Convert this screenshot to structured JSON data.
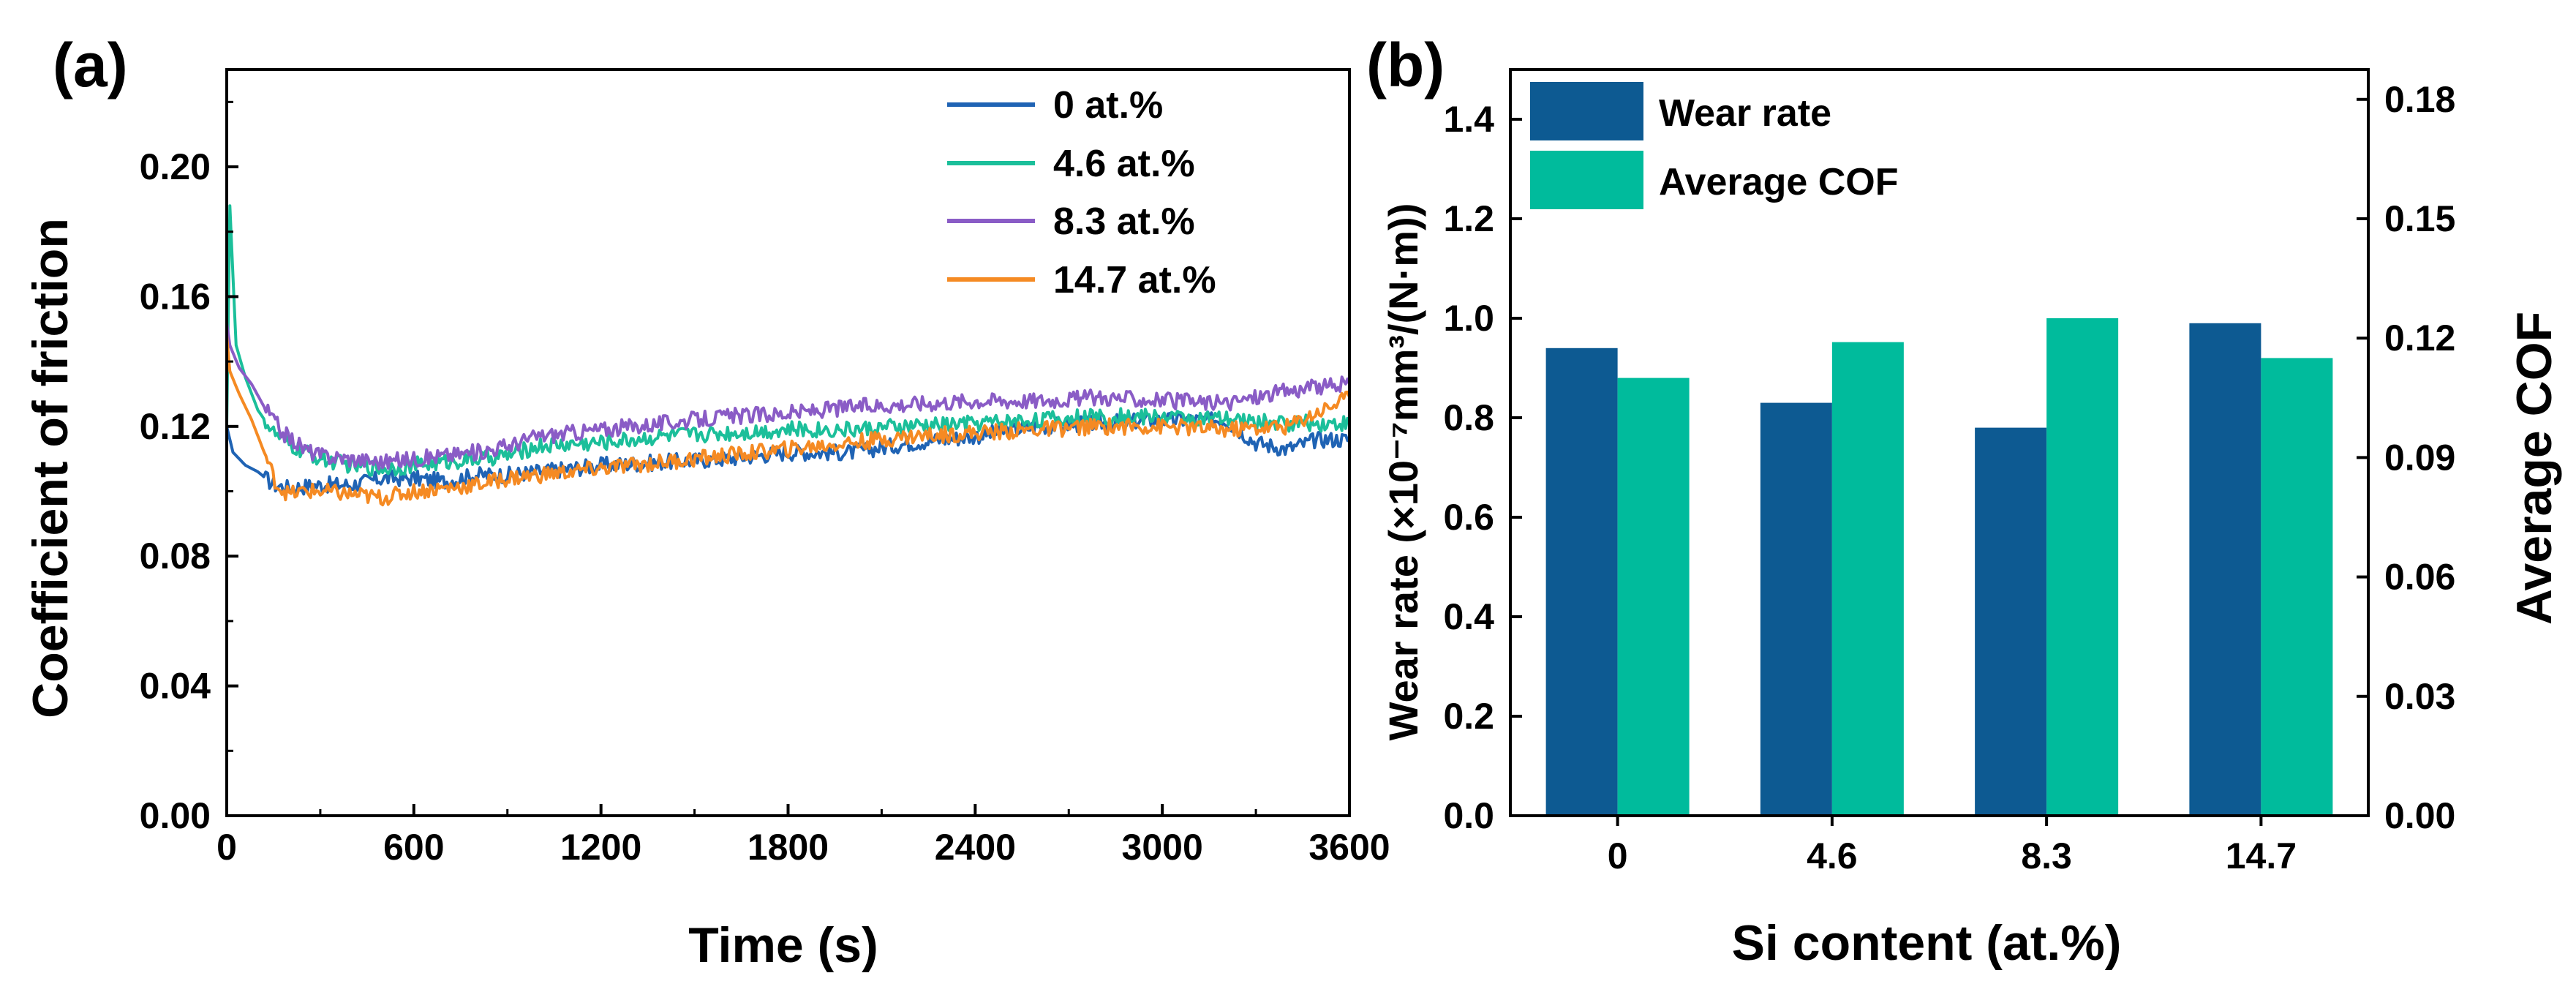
{
  "chart_data": [
    {
      "panel_label": "(a)",
      "type": "line",
      "xlabel": "Time (s)",
      "ylabel": "Coefficient of friction",
      "xlim": [
        0,
        3600
      ],
      "ylim": [
        0,
        0.23
      ],
      "xticks": [
        "0",
        "600",
        "1200",
        "1800",
        "2400",
        "3000",
        "3600"
      ],
      "yticks": [
        "0.00",
        "0.04",
        "0.08",
        "0.12",
        "0.16",
        "0.20"
      ],
      "legend_position": "top-right",
      "series": [
        {
          "name": "0 at.%",
          "color": "#1f63b4",
          "x": [
            0,
            20,
            60,
            100,
            150,
            200,
            300,
            400,
            500,
            600,
            700,
            800,
            900,
            1000,
            1200,
            1400,
            1600,
            1800,
            2000,
            2200,
            2400,
            2600,
            2800,
            3000,
            3200,
            3300,
            3400,
            3500,
            3600
          ],
          "y": [
            0.12,
            0.112,
            0.108,
            0.106,
            0.102,
            0.101,
            0.102,
            0.102,
            0.104,
            0.104,
            0.103,
            0.105,
            0.105,
            0.106,
            0.108,
            0.109,
            0.11,
            0.112,
            0.112,
            0.115,
            0.117,
            0.12,
            0.121,
            0.122,
            0.122,
            0.115,
            0.113,
            0.116,
            0.116
          ]
        },
        {
          "name": "4.6 at.%",
          "color": "#1bbf9a",
          "x": [
            0,
            10,
            30,
            60,
            100,
            150,
            200,
            300,
            400,
            500,
            600,
            700,
            800,
            900,
            1000,
            1200,
            1400,
            1600,
            1800,
            2000,
            2200,
            2400,
            2600,
            2800,
            3000,
            3200,
            3400,
            3600
          ],
          "y": [
            0.12,
            0.188,
            0.145,
            0.135,
            0.125,
            0.118,
            0.114,
            0.11,
            0.108,
            0.107,
            0.108,
            0.109,
            0.11,
            0.111,
            0.114,
            0.115,
            0.117,
            0.118,
            0.119,
            0.119,
            0.12,
            0.121,
            0.122,
            0.123,
            0.123,
            0.122,
            0.121,
            0.121
          ]
        },
        {
          "name": "8.3 at.%",
          "color": "#8a5cc6",
          "x": [
            0,
            10,
            40,
            80,
            120,
            180,
            250,
            300,
            400,
            500,
            600,
            700,
            800,
            900,
            1000,
            1200,
            1400,
            1600,
            1800,
            2000,
            2200,
            2400,
            2600,
            2800,
            3000,
            3200,
            3400,
            3600
          ],
          "y": [
            0.152,
            0.145,
            0.138,
            0.133,
            0.126,
            0.118,
            0.113,
            0.111,
            0.11,
            0.109,
            0.11,
            0.111,
            0.112,
            0.114,
            0.117,
            0.119,
            0.121,
            0.123,
            0.124,
            0.126,
            0.127,
            0.128,
            0.128,
            0.129,
            0.128,
            0.127,
            0.131,
            0.133
          ]
        },
        {
          "name": "14.7 at.%",
          "color": "#f58a23",
          "x": [
            0,
            10,
            40,
            80,
            120,
            160,
            200,
            250,
            300,
            400,
            500,
            600,
            700,
            800,
            900,
            1000,
            1200,
            1400,
            1600,
            1800,
            2000,
            2200,
            2400,
            2600,
            2800,
            3000,
            3200,
            3400,
            3600
          ],
          "y": [
            0.148,
            0.137,
            0.13,
            0.122,
            0.112,
            0.102,
            0.099,
            0.1,
            0.1,
            0.099,
            0.098,
            0.1,
            0.101,
            0.102,
            0.104,
            0.105,
            0.107,
            0.109,
            0.111,
            0.113,
            0.115,
            0.117,
            0.118,
            0.119,
            0.12,
            0.12,
            0.119,
            0.12,
            0.129
          ]
        }
      ]
    },
    {
      "panel_label": "(b)",
      "type": "bar",
      "xlabel": "Si content (at.%)",
      "ylabel": "Wear rate (×10⁻⁷mm³/(N·m))",
      "y2label": "Average COF",
      "categories": [
        "0",
        "4.6",
        "8.3",
        "14.7"
      ],
      "ylim": [
        0,
        1.5
      ],
      "y2lim": [
        0,
        0.1875
      ],
      "yticks": [
        "0.0",
        "0.2",
        "0.4",
        "0.6",
        "0.8",
        "1.0",
        "1.2",
        "1.4"
      ],
      "y2ticks": [
        "0.00",
        "0.03",
        "0.06",
        "0.09",
        "0.12",
        "0.15",
        "0.18"
      ],
      "legend_position": "top-left",
      "series": [
        {
          "name": "Wear rate",
          "axis": "left",
          "color": "#0d5a92",
          "values": [
            0.94,
            0.83,
            0.78,
            0.99
          ]
        },
        {
          "name": "Average COF",
          "axis": "right",
          "color": "#00bb9c",
          "values": [
            0.11,
            0.119,
            0.125,
            0.115
          ]
        }
      ]
    }
  ]
}
